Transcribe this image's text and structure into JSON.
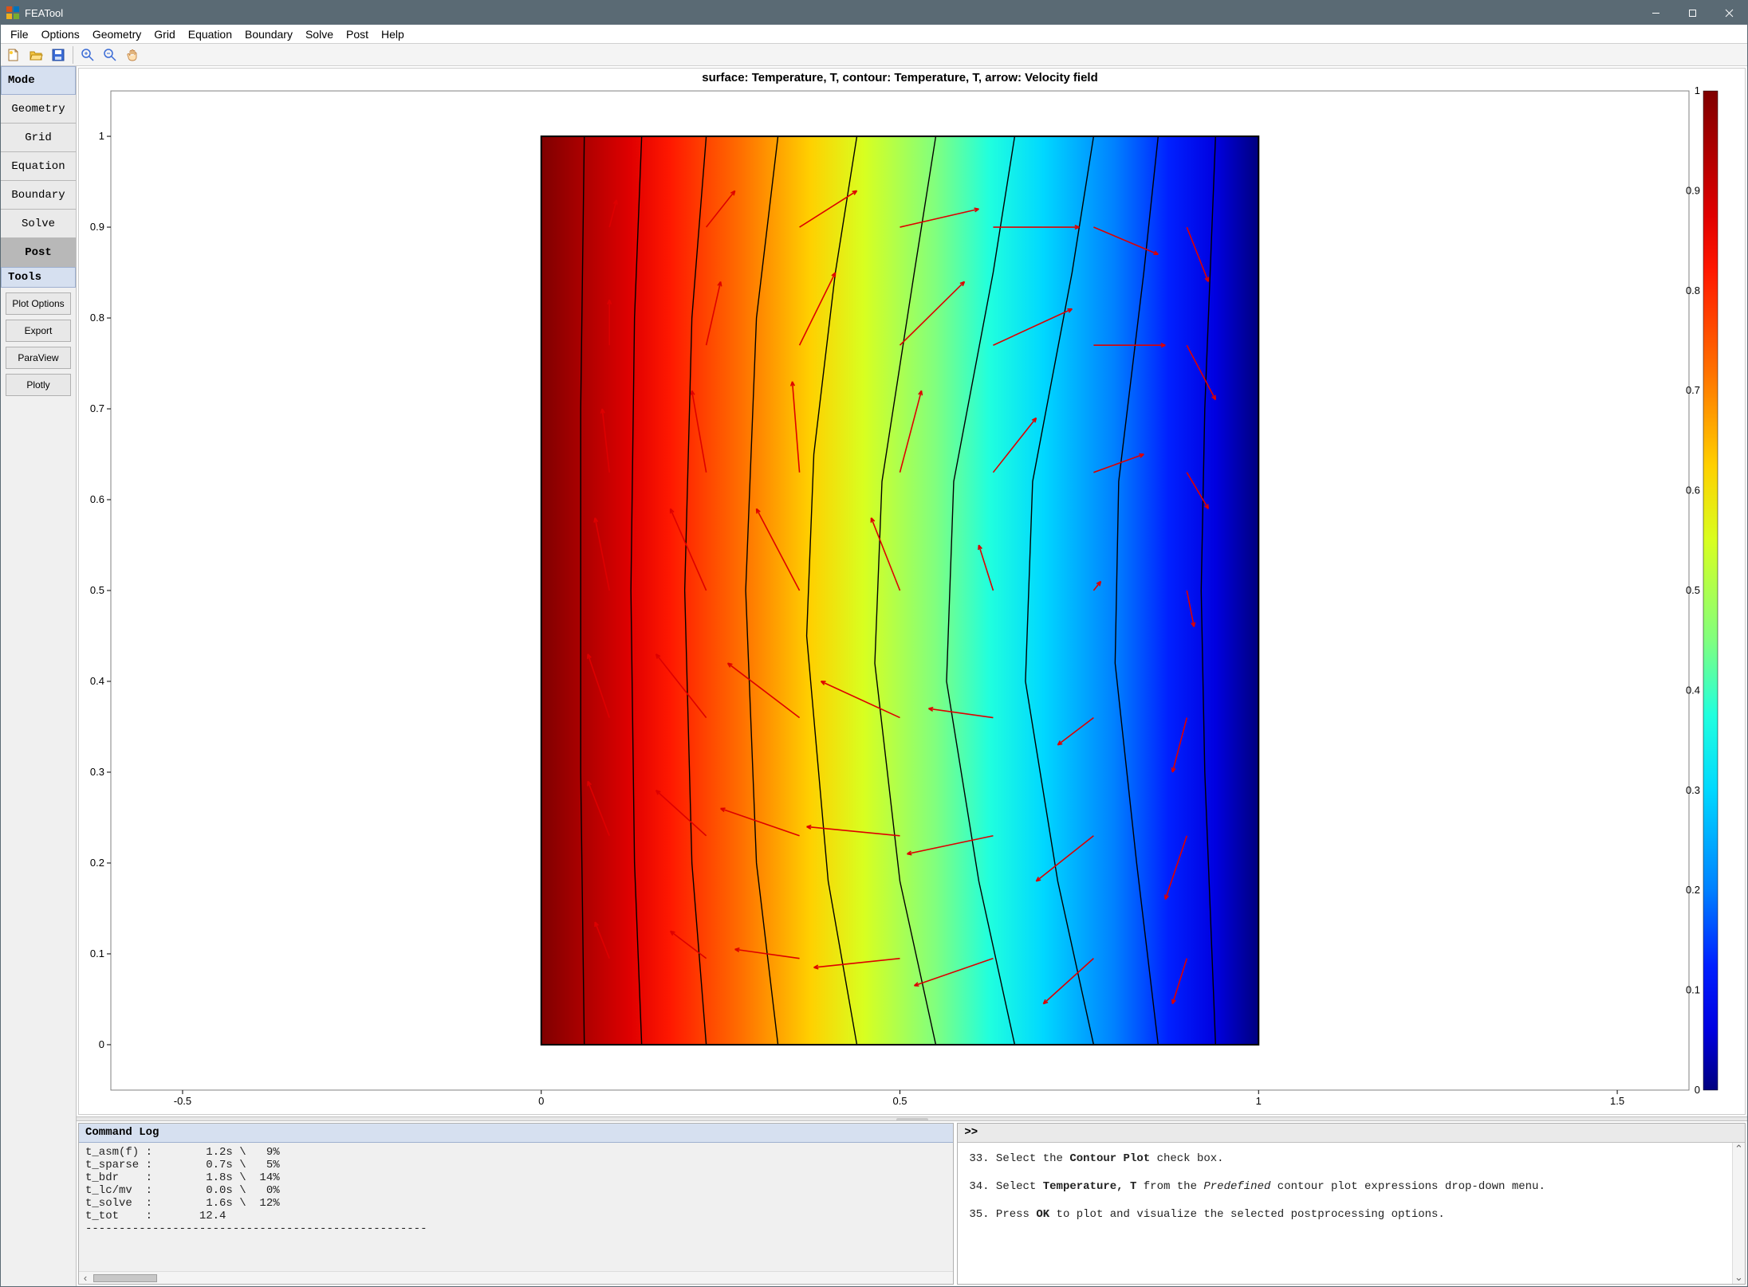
{
  "app": {
    "title": "FEATool"
  },
  "menu": [
    "File",
    "Options",
    "Geometry",
    "Grid",
    "Equation",
    "Boundary",
    "Solve",
    "Post",
    "Help"
  ],
  "sidebar": {
    "mode_label": "Mode",
    "items": [
      "Geometry",
      "Grid",
      "Equation",
      "Boundary",
      "Solve",
      "Post"
    ],
    "active_index": 5,
    "tools_label": "Tools",
    "tools": [
      "Plot Options",
      "Export",
      "ParaView",
      "Plotly"
    ]
  },
  "plot": {
    "title": "surface: Temperature, T, contour: Temperature, T, arrow: Velocity field",
    "title_fontsize": 15,
    "title_weight": "bold",
    "tick_fontsize": 13,
    "background": "#ffffff",
    "axis_color": "#808080",
    "xlim": [
      -0.6,
      1.6
    ],
    "ylim": [
      -0.05,
      1.05
    ],
    "xticks": [
      -0.5,
      0,
      0.5,
      1,
      1.5
    ],
    "yticks": [
      0,
      0.1,
      0.2,
      0.3,
      0.4,
      0.5,
      0.6,
      0.7,
      0.8,
      0.9,
      1
    ],
    "colorbar": {
      "min": 0,
      "max": 1,
      "ticks": [
        0,
        0.1,
        0.2,
        0.3,
        0.4,
        0.5,
        0.6,
        0.7,
        0.8,
        0.9,
        1
      ]
    },
    "domain": {
      "xmin": 0,
      "xmax": 1,
      "ymin": 0,
      "ymax": 1,
      "border_color": "#000000",
      "border_width": 2
    },
    "jet_stops": [
      {
        "o": 0.0,
        "c": "#00007f"
      },
      {
        "o": 0.06,
        "c": "#0000e0"
      },
      {
        "o": 0.125,
        "c": "#0020ff"
      },
      {
        "o": 0.2,
        "c": "#0080ff"
      },
      {
        "o": 0.3,
        "c": "#00d8ff"
      },
      {
        "o": 0.375,
        "c": "#20ffde"
      },
      {
        "o": 0.45,
        "c": "#80ff7f"
      },
      {
        "o": 0.55,
        "c": "#d8ff20"
      },
      {
        "o": 0.625,
        "c": "#ffd000"
      },
      {
        "o": 0.72,
        "c": "#ff7000"
      },
      {
        "o": 0.82,
        "c": "#ff1800"
      },
      {
        "o": 0.875,
        "c": "#e00000"
      },
      {
        "o": 1.0,
        "c": "#7f0000"
      }
    ],
    "contour": {
      "color": "#000000",
      "width": 1.4,
      "lines": [
        [
          [
            0.06,
            0
          ],
          [
            0.055,
            0.3
          ],
          [
            0.055,
            0.7
          ],
          [
            0.06,
            1
          ]
        ],
        [
          [
            0.14,
            0
          ],
          [
            0.13,
            0.2
          ],
          [
            0.125,
            0.5
          ],
          [
            0.13,
            0.8
          ],
          [
            0.14,
            1
          ]
        ],
        [
          [
            0.23,
            0
          ],
          [
            0.21,
            0.2
          ],
          [
            0.2,
            0.5
          ],
          [
            0.21,
            0.8
          ],
          [
            0.23,
            1
          ]
        ],
        [
          [
            0.33,
            0
          ],
          [
            0.3,
            0.2
          ],
          [
            0.285,
            0.5
          ],
          [
            0.3,
            0.8
          ],
          [
            0.33,
            1
          ]
        ],
        [
          [
            0.44,
            0
          ],
          [
            0.4,
            0.18
          ],
          [
            0.37,
            0.45
          ],
          [
            0.38,
            0.65
          ],
          [
            0.41,
            0.85
          ],
          [
            0.44,
            1
          ]
        ],
        [
          [
            0.55,
            0
          ],
          [
            0.5,
            0.18
          ],
          [
            0.465,
            0.42
          ],
          [
            0.475,
            0.62
          ],
          [
            0.52,
            0.85
          ],
          [
            0.55,
            1
          ]
        ],
        [
          [
            0.66,
            0
          ],
          [
            0.61,
            0.18
          ],
          [
            0.565,
            0.4
          ],
          [
            0.575,
            0.62
          ],
          [
            0.63,
            0.85
          ],
          [
            0.66,
            1
          ]
        ],
        [
          [
            0.77,
            0
          ],
          [
            0.72,
            0.18
          ],
          [
            0.675,
            0.4
          ],
          [
            0.685,
            0.62
          ],
          [
            0.74,
            0.85
          ],
          [
            0.77,
            1
          ]
        ],
        [
          [
            0.86,
            0
          ],
          [
            0.83,
            0.2
          ],
          [
            0.8,
            0.42
          ],
          [
            0.805,
            0.62
          ],
          [
            0.84,
            0.85
          ],
          [
            0.86,
            1
          ]
        ],
        [
          [
            0.94,
            0
          ],
          [
            0.925,
            0.3
          ],
          [
            0.92,
            0.5
          ],
          [
            0.925,
            0.7
          ],
          [
            0.94,
            1
          ]
        ]
      ]
    },
    "arrows": {
      "color": "#dd0000",
      "width": 1.6,
      "head": 6,
      "data": [
        [
          0.095,
          0.095,
          -0.02,
          0.04
        ],
        [
          0.095,
          0.23,
          -0.03,
          0.06
        ],
        [
          0.095,
          0.36,
          -0.03,
          0.07
        ],
        [
          0.095,
          0.5,
          -0.02,
          0.08
        ],
        [
          0.095,
          0.63,
          -0.01,
          0.07
        ],
        [
          0.095,
          0.77,
          0.0,
          0.05
        ],
        [
          0.095,
          0.9,
          0.01,
          0.03
        ],
        [
          0.23,
          0.095,
          -0.05,
          0.03
        ],
        [
          0.23,
          0.23,
          -0.07,
          0.05
        ],
        [
          0.23,
          0.36,
          -0.07,
          0.07
        ],
        [
          0.23,
          0.5,
          -0.05,
          0.09
        ],
        [
          0.23,
          0.63,
          -0.02,
          0.09
        ],
        [
          0.23,
          0.77,
          0.02,
          0.07
        ],
        [
          0.23,
          0.9,
          0.04,
          0.04
        ],
        [
          0.36,
          0.095,
          -0.09,
          0.01
        ],
        [
          0.36,
          0.23,
          -0.11,
          0.03
        ],
        [
          0.36,
          0.36,
          -0.1,
          0.06
        ],
        [
          0.36,
          0.5,
          -0.06,
          0.09
        ],
        [
          0.36,
          0.63,
          -0.01,
          0.1
        ],
        [
          0.36,
          0.77,
          0.05,
          0.08
        ],
        [
          0.36,
          0.9,
          0.08,
          0.04
        ],
        [
          0.5,
          0.095,
          -0.12,
          -0.01
        ],
        [
          0.5,
          0.23,
          -0.13,
          0.01
        ],
        [
          0.5,
          0.36,
          -0.11,
          0.04
        ],
        [
          0.5,
          0.5,
          -0.04,
          0.08
        ],
        [
          0.5,
          0.63,
          0.03,
          0.09
        ],
        [
          0.5,
          0.77,
          0.09,
          0.07
        ],
        [
          0.5,
          0.9,
          0.11,
          0.02
        ],
        [
          0.63,
          0.095,
          -0.11,
          -0.03
        ],
        [
          0.63,
          0.23,
          -0.12,
          -0.02
        ],
        [
          0.63,
          0.36,
          -0.09,
          0.01
        ],
        [
          0.63,
          0.5,
          -0.02,
          0.05
        ],
        [
          0.63,
          0.63,
          0.06,
          0.06
        ],
        [
          0.63,
          0.77,
          0.11,
          0.04
        ],
        [
          0.63,
          0.9,
          0.12,
          0.0
        ],
        [
          0.77,
          0.095,
          -0.07,
          -0.05
        ],
        [
          0.77,
          0.23,
          -0.08,
          -0.05
        ],
        [
          0.77,
          0.36,
          -0.05,
          -0.03
        ],
        [
          0.77,
          0.5,
          0.01,
          0.01
        ],
        [
          0.77,
          0.63,
          0.07,
          0.02
        ],
        [
          0.77,
          0.77,
          0.1,
          0.0
        ],
        [
          0.77,
          0.9,
          0.09,
          -0.03
        ],
        [
          0.9,
          0.095,
          -0.02,
          -0.05
        ],
        [
          0.9,
          0.23,
          -0.03,
          -0.07
        ],
        [
          0.9,
          0.36,
          -0.02,
          -0.06
        ],
        [
          0.9,
          0.5,
          0.01,
          -0.04
        ],
        [
          0.9,
          0.63,
          0.03,
          -0.04
        ],
        [
          0.9,
          0.77,
          0.04,
          -0.06
        ],
        [
          0.9,
          0.9,
          0.03,
          -0.06
        ]
      ]
    }
  },
  "log": {
    "header": "Command Log",
    "lines": [
      "t_asm(f) :        1.2s \\   9%",
      "t_sparse :        0.7s \\   5%",
      "t_bdr    :        1.8s \\  14%",
      "t_lc/mv  :        0.0s \\   0%",
      "t_solve  :        1.6s \\  12%",
      "t_tot    :       12.4",
      "---------------------------------------------------"
    ]
  },
  "help": {
    "prompt": ">>",
    "steps": [
      {
        "n": "33.",
        "pre": "Select the ",
        "b": "Contour Plot",
        "post": " check box."
      },
      {
        "n": "34.",
        "pre": "Select ",
        "b": "Temperature, T",
        "mid": " from the ",
        "i": "Predefined",
        "post": " contour plot expressions drop-down menu."
      },
      {
        "n": "35.",
        "pre": "Press ",
        "b": "OK",
        "post": " to plot and visualize the selected postprocessing options."
      }
    ]
  }
}
